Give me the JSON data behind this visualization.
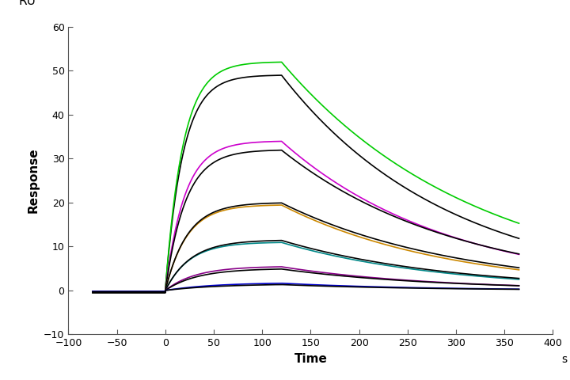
{
  "xlabel": "Time",
  "ylabel": "Response",
  "ylabel_top": "RU",
  "xlabel_right": "s",
  "xlim": [
    -100,
    400
  ],
  "ylim": [
    -10,
    60
  ],
  "xticks": [
    -100,
    -50,
    0,
    50,
    100,
    150,
    200,
    250,
    300,
    350,
    400
  ],
  "yticks": [
    -10,
    0,
    10,
    20,
    30,
    40,
    50,
    60
  ],
  "background_color": "#ffffff",
  "association_start": 0,
  "association_end": 120,
  "dissociation_end": 365,
  "series": [
    {
      "color": "#000000",
      "peak": 49.0,
      "kon": 0.055,
      "koff": 0.0058,
      "baseline_before": -0.5,
      "baseline_after": 0.0
    },
    {
      "color": "#00cc00",
      "peak": 52.0,
      "kon": 0.055,
      "koff": 0.005,
      "baseline_before": -0.3,
      "baseline_after": 0.0
    },
    {
      "color": "#cc00cc",
      "peak": 34.0,
      "kon": 0.05,
      "koff": 0.0058,
      "baseline_before": -0.4,
      "baseline_after": 0.0
    },
    {
      "color": "#000000",
      "peak": 32.0,
      "kon": 0.048,
      "koff": 0.0055,
      "baseline_before": -0.5,
      "baseline_after": 0.0
    },
    {
      "color": "#cc8800",
      "peak": 19.5,
      "kon": 0.045,
      "koff": 0.0058,
      "baseline_before": -0.3,
      "baseline_after": 0.0
    },
    {
      "color": "#000000",
      "peak": 20.0,
      "kon": 0.044,
      "koff": 0.0055,
      "baseline_before": -0.5,
      "baseline_after": 0.0
    },
    {
      "color": "#008888",
      "peak": 11.0,
      "kon": 0.04,
      "koff": 0.006,
      "baseline_before": -0.2,
      "baseline_after": 0.0
    },
    {
      "color": "#000000",
      "peak": 11.5,
      "kon": 0.038,
      "koff": 0.0058,
      "baseline_before": -0.3,
      "baseline_after": 0.0
    },
    {
      "color": "#880088",
      "peak": 5.5,
      "kon": 0.032,
      "koff": 0.0065,
      "baseline_before": -0.2,
      "baseline_after": 0.0
    },
    {
      "color": "#000000",
      "peak": 5.0,
      "kon": 0.03,
      "koff": 0.0062,
      "baseline_before": -0.3,
      "baseline_after": 0.0
    },
    {
      "color": "#0000cc",
      "peak": 1.8,
      "kon": 0.02,
      "koff": 0.007,
      "baseline_before": -0.2,
      "baseline_after": 0.0
    },
    {
      "color": "#000000",
      "peak": 1.5,
      "kon": 0.018,
      "koff": 0.0068,
      "baseline_before": -0.3,
      "baseline_after": 0.0
    }
  ]
}
